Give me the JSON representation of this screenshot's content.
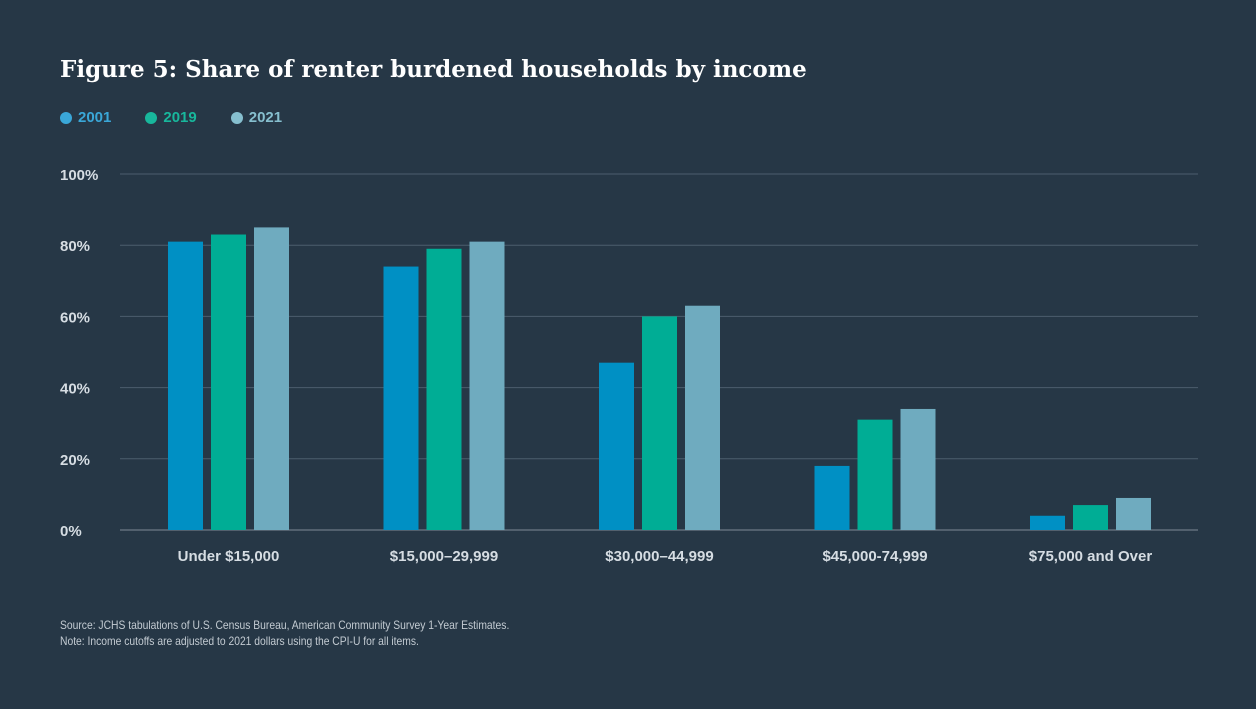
{
  "chart_data": {
    "type": "bar",
    "title": "Figure 5: Share of renter burdened households by income",
    "categories": [
      "Under $15,000",
      "$15,000–29,999",
      "$30,000–44,999",
      "$45,000-74,999",
      "$75,000 and Over"
    ],
    "series": [
      {
        "name": "2001",
        "color": "#0090c4",
        "legend_color": "#3aa7d8",
        "values": [
          81,
          74,
          47,
          18,
          4
        ]
      },
      {
        "name": "2019",
        "color": "#00ad95",
        "legend_color": "#18b79c",
        "values": [
          83,
          79,
          60,
          31,
          7
        ]
      },
      {
        "name": "2021",
        "color": "#6fabbf",
        "legend_color": "#86bfcf",
        "values": [
          85,
          81,
          63,
          34,
          9
        ]
      }
    ],
    "yticks": [
      "0%",
      "20%",
      "40%",
      "60%",
      "80%",
      "100%"
    ],
    "ylim": [
      0,
      100
    ],
    "grid": true,
    "legend_position": "top-left"
  },
  "footnotes": {
    "source": "Source: JCHS tabulations of U.S. Census Bureau, American Community Survey 1-Year Estimates.",
    "note": "Note: Income cutoffs are adjusted to 2021 dollars using the CPI-U for all items."
  }
}
